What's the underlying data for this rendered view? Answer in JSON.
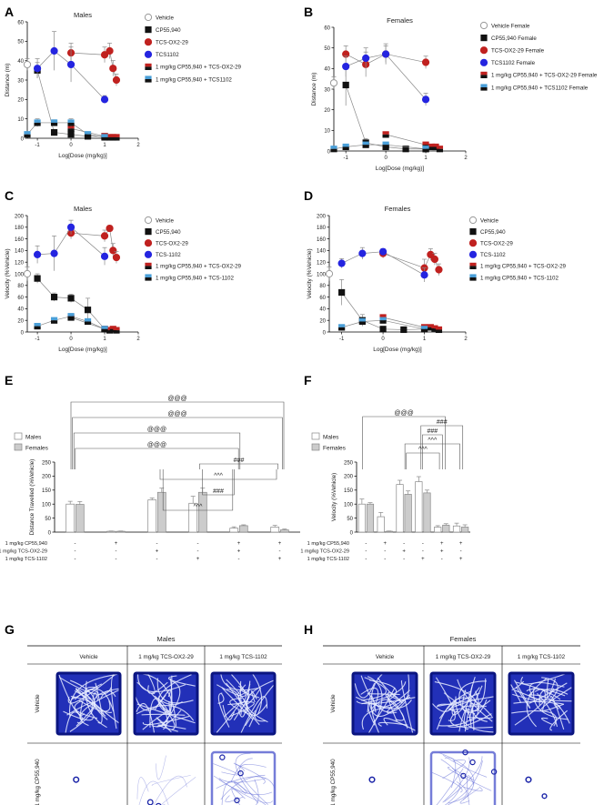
{
  "figure": {
    "panel_letters": {
      "A": "A",
      "B": "B",
      "C": "C",
      "D": "D",
      "E": "E",
      "F": "F",
      "G": "G",
      "H": "H"
    }
  },
  "chart_data": [
    {
      "id": "A",
      "type": "line",
      "title": "Males",
      "xlabel": "Log[Dose (mg/kg)]",
      "ylabel": "Distance (m)",
      "xlim": [
        -1.3,
        2
      ],
      "ylim": [
        0,
        60
      ],
      "xticks": [
        -1,
        0,
        1,
        2
      ],
      "yticks": [
        0,
        10,
        20,
        30,
        40,
        50,
        60
      ],
      "legend": "right",
      "series": [
        {
          "name": "Vehicle",
          "color": "#ffffff",
          "stroke": "#999999",
          "marker": "circle",
          "points": [
            [
              -1.3,
              38,
              3
            ]
          ]
        },
        {
          "name": "CP55,940",
          "color": "#111111",
          "marker": "square",
          "points": [
            [
              -1,
              35,
              4
            ],
            [
              -0.5,
              3,
              1
            ],
            [
              0,
              2,
              1
            ],
            [
              0.5,
              1,
              1
            ],
            [
              1,
              1,
              1
            ]
          ]
        },
        {
          "name": "TCS-OX2-29",
          "color": "#c0211f",
          "marker": "circle",
          "points": [
            [
              0,
              44,
              5
            ],
            [
              1,
              43,
              4
            ],
            [
              1.15,
              45,
              4
            ],
            [
              1.25,
              36,
              4
            ],
            [
              1.35,
              30,
              3
            ]
          ]
        },
        {
          "name": "TCS1102",
          "color": "#2424e0",
          "marker": "circle",
          "points": [
            [
              -1,
              36,
              5
            ],
            [
              -0.5,
              45,
              10
            ],
            [
              0,
              38,
              9
            ],
            [
              1,
              20,
              2
            ]
          ]
        },
        {
          "name": "1 mg/kg CP55,940 + TCS-OX2-29",
          "color": "#c0211f",
          "marker": "square-half",
          "points": [
            [
              0,
              5,
              1
            ],
            [
              1,
              1,
              0.5
            ],
            [
              1.15,
              0.5,
              0.3
            ],
            [
              1.25,
              0.5,
              0.3
            ],
            [
              1.35,
              0.5,
              0.3
            ]
          ]
        },
        {
          "name": "1 mg/kg CP55,940 + TCS1102",
          "color": "#4a9fd8",
          "marker": "square-half",
          "points": [
            [
              -1.3,
              2,
              1
            ],
            [
              -1,
              8,
              2
            ],
            [
              -0.5,
              8,
              1.5
            ],
            [
              0,
              8,
              2
            ],
            [
              0.5,
              2,
              1
            ],
            [
              1,
              0.5,
              0.3
            ]
          ]
        }
      ]
    },
    {
      "id": "B",
      "type": "line",
      "title": "Females",
      "xlabel": "Log[Dose (mg/kg)]",
      "ylabel": "Distance (m)",
      "xlim": [
        -1.3,
        2
      ],
      "ylim": [
        0,
        60
      ],
      "xticks": [
        -1,
        0,
        1,
        2
      ],
      "yticks": [
        0,
        10,
        20,
        30,
        40,
        50,
        60
      ],
      "legend": "right",
      "series": [
        {
          "name": "Vehicle Female",
          "color": "#ffffff",
          "stroke": "#999999",
          "marker": "circle",
          "points": [
            [
              -1.3,
              33,
              3
            ]
          ]
        },
        {
          "name": "CP55,940 Female",
          "color": "#111111",
          "marker": "square",
          "points": [
            [
              -1,
              32,
              10
            ],
            [
              -0.5,
              4,
              2
            ],
            [
              0,
              2,
              1
            ],
            [
              0.5,
              1,
              0.5
            ],
            [
              1,
              1,
              0.5
            ]
          ]
        },
        {
          "name": "TCS-OX2-29 Female",
          "color": "#c0211f",
          "marker": "circle",
          "points": [
            [
              -1,
              47,
              4
            ],
            [
              -0.5,
              42,
              6
            ],
            [
              0,
              47,
              4
            ],
            [
              1,
              43,
              3
            ]
          ]
        },
        {
          "name": "TCS1102 Female",
          "color": "#2424e0",
          "marker": "circle",
          "points": [
            [
              -1,
              41,
              5
            ],
            [
              -0.5,
              45,
              5
            ],
            [
              0,
              47,
              5
            ],
            [
              1,
              25,
              3
            ]
          ]
        },
        {
          "name": "1 mg/kg CP55,940 + TCS-OX2-29 Female",
          "color": "#c0211f",
          "marker": "square-half",
          "points": [
            [
              0,
              8,
              1
            ],
            [
              1,
              3,
              1
            ],
            [
              1.15,
              2,
              0.5
            ],
            [
              1.25,
              2,
              0.5
            ],
            [
              1.35,
              1,
              0.5
            ]
          ]
        },
        {
          "name": "1 mg/kg CP55,940 + TCS1102 Female",
          "color": "#4a9fd8",
          "marker": "square-half",
          "points": [
            [
              -1.3,
              1,
              0.5
            ],
            [
              -1,
              2,
              1
            ],
            [
              -0.5,
              3,
              1
            ],
            [
              0,
              3,
              1
            ],
            [
              1,
              1,
              0.5
            ]
          ]
        }
      ]
    },
    {
      "id": "C",
      "type": "line",
      "title": "Males",
      "xlabel": "Log[Dose (mg/kg)]",
      "ylabel": "Velocity (%Vehicle)",
      "xlim": [
        -1.3,
        2
      ],
      "ylim": [
        0,
        200
      ],
      "xticks": [
        -1,
        0,
        1,
        2
      ],
      "yticks": [
        0,
        20,
        40,
        60,
        80,
        100,
        120,
        140,
        160,
        180,
        200
      ],
      "legend": "right",
      "series": [
        {
          "name": "Vehicle",
          "color": "#ffffff",
          "stroke": "#999999",
          "marker": "circle",
          "points": [
            [
              -1.3,
              100,
              12
            ]
          ]
        },
        {
          "name": "CP55,940",
          "color": "#111111",
          "marker": "square",
          "points": [
            [
              -1,
              92,
              8
            ],
            [
              -0.5,
              60,
              7
            ],
            [
              0,
              58,
              7
            ],
            [
              0.5,
              38,
              20
            ],
            [
              1,
              5,
              3
            ]
          ]
        },
        {
          "name": "TCS-OX2-29",
          "color": "#c0211f",
          "marker": "circle",
          "points": [
            [
              0,
              170,
              10
            ],
            [
              1,
              165,
              10
            ],
            [
              1.15,
              178,
              5
            ],
            [
              1.25,
              140,
              12
            ],
            [
              1.35,
              128,
              10
            ]
          ]
        },
        {
          "name": "TCS-1102",
          "color": "#2424e0",
          "marker": "circle",
          "points": [
            [
              -1,
              133,
              15
            ],
            [
              -0.5,
              135,
              30
            ],
            [
              0,
              180,
              12
            ],
            [
              1,
              130,
              15
            ]
          ]
        },
        {
          "name": "1 mg/kg CP55,940 + TCS-OX2-29",
          "color": "#c0211f",
          "marker": "square-half",
          "points": [
            [
              0,
              25,
              4
            ],
            [
              1,
              5,
              2
            ],
            [
              1.15,
              3,
              1
            ],
            [
              1.25,
              5,
              2
            ],
            [
              1.35,
              3,
              1
            ]
          ]
        },
        {
          "name": "1 mg/kg CP55,940 + TCS-1102",
          "color": "#4a9fd8",
          "marker": "square-half",
          "points": [
            [
              -1,
              10,
              3
            ],
            [
              -0.5,
              20,
              4
            ],
            [
              0,
              27,
              4
            ],
            [
              0.5,
              18,
              5
            ],
            [
              1,
              5,
              2
            ]
          ]
        }
      ]
    },
    {
      "id": "D",
      "type": "line",
      "title": "Females",
      "xlabel": "Log[Dose (mg/kg)]",
      "ylabel": "Velocity (%Vehicle)",
      "xlim": [
        -1.3,
        2
      ],
      "ylim": [
        0,
        200
      ],
      "xticks": [
        -1,
        0,
        1,
        2
      ],
      "yticks": [
        0,
        20,
        40,
        60,
        80,
        100,
        120,
        140,
        160,
        180,
        200
      ],
      "legend": "right",
      "series": [
        {
          "name": "Vehicle",
          "color": "#ffffff",
          "stroke": "#999999",
          "marker": "circle",
          "points": [
            [
              -1.3,
              100,
              12
            ]
          ]
        },
        {
          "name": "CP55,940",
          "color": "#111111",
          "marker": "square",
          "points": [
            [
              -1,
              68,
              22
            ],
            [
              -0.5,
              20,
              10
            ],
            [
              0,
              5,
              3
            ],
            [
              0.5,
              4,
              2
            ],
            [
              1,
              5,
              2
            ]
          ]
        },
        {
          "name": "TCS-OX2-29",
          "color": "#c0211f",
          "marker": "circle",
          "points": [
            [
              0,
              135,
              8
            ],
            [
              1,
              110,
              15
            ],
            [
              1.15,
              133,
              10
            ],
            [
              1.25,
              125,
              10
            ],
            [
              1.35,
              107,
              10
            ]
          ]
        },
        {
          "name": "TCS-1102",
          "color": "#2424e0",
          "marker": "circle",
          "points": [
            [
              -1,
              118,
              8
            ],
            [
              -0.5,
              135,
              10
            ],
            [
              0,
              138,
              5
            ],
            [
              1,
              98,
              12
            ]
          ]
        },
        {
          "name": "1 mg/kg CP55,940 + TCS-OX2-29",
          "color": "#c0211f",
          "marker": "square-half",
          "points": [
            [
              0,
              25,
              5
            ],
            [
              1,
              8,
              2
            ],
            [
              1.15,
              8,
              2
            ],
            [
              1.25,
              6,
              2
            ],
            [
              1.35,
              4,
              1
            ]
          ]
        },
        {
          "name": "1 mg/kg CP55,940 + TCS-1102",
          "color": "#4a9fd8",
          "marker": "square-half",
          "points": [
            [
              -1,
              8,
              3
            ],
            [
              -0.5,
              18,
              5
            ],
            [
              0,
              20,
              4
            ],
            [
              1,
              5,
              2
            ]
          ]
        }
      ]
    },
    {
      "id": "E",
      "type": "bar",
      "ylabel": "Distance Travelled (%Vehicle)",
      "ylim": [
        0,
        250
      ],
      "yticks": [
        0,
        50,
        100,
        150,
        200,
        250
      ],
      "legend": "top-left",
      "groups": 6,
      "series": [
        {
          "name": "Males",
          "color": "#ffffff",
          "values": [
            100,
            3,
            115,
            103,
            14,
            18
          ],
          "errors": [
            10,
            1,
            7,
            25,
            5,
            6
          ]
        },
        {
          "name": "Females",
          "color": "#cccccc",
          "values": [
            99,
            3,
            142,
            142,
            23,
            8
          ],
          "errors": [
            10,
            1,
            15,
            15,
            3,
            3
          ]
        }
      ],
      "treatments": [
        {
          "label": "1 mg/kg CP55,940",
          "signs": [
            "-",
            "+",
            "-",
            "-",
            "+",
            "+"
          ]
        },
        {
          "label": "1 mg/kg TCS-OX2-29",
          "signs": [
            "-",
            "-",
            "+",
            "-",
            "+",
            "-"
          ]
        },
        {
          "label": "1 mg/kg TCS-1102",
          "signs": [
            "-",
            "-",
            "-",
            "+",
            "-",
            "+"
          ]
        }
      ],
      "brackets": [
        {
          "label": "@@@",
          "from": 0,
          "to": 5
        },
        {
          "label": "@@@",
          "from": 0,
          "to": 5
        },
        {
          "label": "@@@",
          "from": 0,
          "to": 4
        },
        {
          "label": "@@@",
          "from": 0,
          "to": 4
        },
        {
          "label": "###",
          "from": 3,
          "to": 5
        },
        {
          "label": "^^^",
          "from": 2,
          "to": 5
        },
        {
          "label": "###",
          "from": 3,
          "to": 4
        },
        {
          "label": "^^^",
          "from": 2,
          "to": 4
        }
      ]
    },
    {
      "id": "F",
      "type": "bar",
      "ylabel": "Velocity (%Vehicle)",
      "ylim": [
        0,
        250
      ],
      "yticks": [
        0,
        50,
        100,
        150,
        200,
        250
      ],
      "legend": "top-left",
      "groups": 6,
      "series": [
        {
          "name": "Males",
          "color": "#ffffff",
          "values": [
            100,
            55,
            170,
            180,
            18,
            22
          ],
          "errors": [
            18,
            15,
            15,
            18,
            5,
            10
          ]
        },
        {
          "name": "Females",
          "color": "#cccccc",
          "values": [
            100,
            3,
            135,
            140,
            25,
            18
          ],
          "errors": [
            5,
            1,
            12,
            10,
            5,
            8
          ]
        }
      ],
      "treatments": [
        {
          "label": "1 mg/kg CP55,940",
          "signs": [
            "-",
            "+",
            "-",
            "-",
            "+",
            "+"
          ]
        },
        {
          "label": "1 mg/kg TCS-OX2-29",
          "signs": [
            "-",
            "-",
            "+",
            "-",
            "+",
            "-"
          ]
        },
        {
          "label": "1 mg/kg TCS-1102",
          "signs": [
            "-",
            "-",
            "-",
            "+",
            "-",
            "+"
          ]
        }
      ],
      "brackets": [
        {
          "label": "@@@",
          "from": 0,
          "to": 4
        },
        {
          "label": "###",
          "from": 3,
          "to": 5
        },
        {
          "label": "###",
          "from": 3,
          "to": 4
        },
        {
          "label": "^^^",
          "from": 2,
          "to": 5
        },
        {
          "label": "^^^",
          "from": 2,
          "to": 4
        }
      ]
    }
  ],
  "heatmaps": [
    {
      "id": "G",
      "title": "Males",
      "col_labels": [
        "Vehicle",
        "1 mg/kg TCS-OX2-29",
        "1 mg/kg TCS-1102"
      ],
      "row_labels": [
        "Vehicle",
        "1 mg/kg CP55,940"
      ],
      "cells": [
        [
          "dense",
          "dense",
          "dense"
        ],
        [
          "dot",
          "sparse",
          "moderate"
        ]
      ]
    },
    {
      "id": "H",
      "title": "Females",
      "col_labels": [
        "Vehicle",
        "1 mg/kg TCS-OX2-29",
        "1 mg/kg TCS-1102"
      ],
      "row_labels": [
        "Vehicle",
        "1 mg/kg CP55,940"
      ],
      "cells": [
        [
          "dense",
          "dense",
          "dense"
        ],
        [
          "dot",
          "moderate",
          "dot"
        ]
      ]
    }
  ]
}
